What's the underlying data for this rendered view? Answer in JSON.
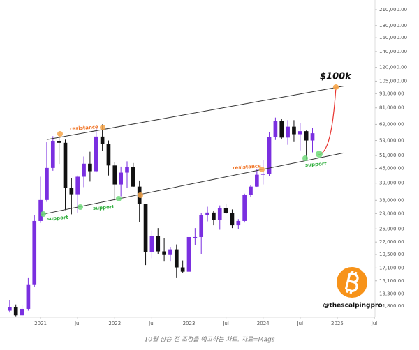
{
  "chart_data": {
    "type": "candlestick",
    "log_scale": true,
    "up_color": "#7a2fe0",
    "down_color": "#111111",
    "x": [
      "2020-08",
      "2020-09",
      "2020-10",
      "2020-11",
      "2020-12",
      "2021-01",
      "2021-02",
      "2021-03",
      "2021-04",
      "2021-05",
      "2021-06",
      "2021-07",
      "2021-08",
      "2021-09",
      "2021-10",
      "2021-11",
      "2021-12",
      "2022-01",
      "2022-02",
      "2022-03",
      "2022-04",
      "2022-05",
      "2022-06",
      "2022-07",
      "2022-08",
      "2022-09",
      "2022-10",
      "2022-11",
      "2022-12",
      "2023-01",
      "2023-02",
      "2023-03",
      "2023-04",
      "2023-05",
      "2023-06",
      "2023-07",
      "2023-08",
      "2023-09",
      "2023-10",
      "2023-11",
      "2023-12",
      "2024-01",
      "2024-02",
      "2024-03",
      "2024-04",
      "2024-05",
      "2024-06",
      "2024-07",
      "2024-08",
      "2024-09"
    ],
    "open": [
      11300,
      11700,
      10800,
      11500,
      14500,
      27000,
      33100,
      45200,
      58800,
      57700,
      37300,
      35000,
      41500,
      47100,
      43800,
      61300,
      57000,
      46300,
      38500,
      43200,
      45500,
      37700,
      31800,
      19900,
      23300,
      20100,
      19400,
      20500,
      17200,
      16500,
      23100,
      23100,
      28500,
      29300,
      27200,
      30500,
      29200,
      25900,
      27000,
      34700,
      37700,
      42300,
      42600,
      61200,
      71300,
      60700,
      67500,
      62700,
      64600,
      59000
    ],
    "high": [
      12500,
      12000,
      11900,
      15500,
      28500,
      41500,
      58000,
      61500,
      64500,
      59500,
      41000,
      42000,
      50500,
      52900,
      67000,
      69000,
      59000,
      48000,
      45800,
      48200,
      47400,
      40000,
      31900,
      24600,
      25200,
      22800,
      21000,
      21500,
      18400,
      23900,
      25200,
      29200,
      31000,
      29800,
      31400,
      31800,
      30200,
      27500,
      35200,
      38400,
      44700,
      48900,
      63900,
      73700,
      72700,
      71900,
      71900,
      70000,
      65000,
      66500
    ],
    "low": [
      11100,
      10700,
      10700,
      11300,
      14200,
      26500,
      32500,
      44000,
      47000,
      30000,
      28800,
      29300,
      37500,
      39600,
      43300,
      53500,
      42000,
      33000,
      34300,
      37200,
      37600,
      26700,
      17600,
      18800,
      19600,
      18200,
      18200,
      15500,
      16300,
      16400,
      21400,
      19600,
      26900,
      25900,
      24800,
      28900,
      25200,
      24900,
      26600,
      34100,
      37600,
      38500,
      41900,
      59300,
      59600,
      56600,
      58500,
      53600,
      49100,
      52600
    ],
    "close": [
      11700,
      10800,
      11500,
      14500,
      27000,
      33100,
      45200,
      58800,
      57700,
      37300,
      35000,
      41500,
      47100,
      43800,
      61300,
      57000,
      46300,
      38500,
      43200,
      45500,
      37700,
      31800,
      19900,
      23300,
      20100,
      19400,
      20500,
      17200,
      16500,
      23100,
      23100,
      28500,
      29300,
      27200,
      30500,
      29200,
      25900,
      27000,
      34700,
      37700,
      42300,
      42600,
      61200,
      71300,
      60700,
      67500,
      62700,
      64600,
      59000,
      63300
    ],
    "xlim": [
      "2020-07",
      "2025-07"
    ],
    "xticks": [
      {
        "value": "2021-01",
        "label": "2021"
      },
      {
        "value": "2021-07",
        "label": "Jul"
      },
      {
        "value": "2022-01",
        "label": "2022"
      },
      {
        "value": "2022-07",
        "label": "Jul"
      },
      {
        "value": "2023-01",
        "label": "2023"
      },
      {
        "value": "2023-07",
        "label": "Jul"
      },
      {
        "value": "2024-01",
        "label": "2024"
      },
      {
        "value": "2024-07",
        "label": "Jul"
      },
      {
        "value": "2025-01",
        "label": "2025"
      },
      {
        "value": "2025-07",
        "label": "Jul"
      }
    ],
    "ylim": [
      10600,
      231000
    ],
    "yticks": [
      {
        "value": 210000,
        "label": "210,000.00"
      },
      {
        "value": 180000,
        "label": "180,000.00"
      },
      {
        "value": 160000,
        "label": "160,000.00"
      },
      {
        "value": 140000,
        "label": "140,000.00"
      },
      {
        "value": 120000,
        "label": "120,000.00"
      },
      {
        "value": 105000,
        "label": "105,000.00"
      },
      {
        "value": 93000,
        "label": "93,000.00"
      },
      {
        "value": 81000,
        "label": "81,000.00"
      },
      {
        "value": 69000,
        "label": "69,000.00"
      },
      {
        "value": 59000,
        "label": "59,000.00"
      },
      {
        "value": 51000,
        "label": "51,000.00"
      },
      {
        "value": 45000,
        "label": "45,000.00"
      },
      {
        "value": 39000,
        "label": "39,000.00"
      },
      {
        "value": 33000,
        "label": "33,000.00"
      },
      {
        "value": 29000,
        "label": "29,000.00"
      },
      {
        "value": 25000,
        "label": "25,000.00"
      },
      {
        "value": 22000,
        "label": "22,000.00"
      },
      {
        "value": 19500,
        "label": "19,500.00"
      },
      {
        "value": 17100,
        "label": "17,100.00"
      },
      {
        "value": 15100,
        "label": "15,100.00"
      },
      {
        "value": 13300,
        "label": "13,300.00"
      },
      {
        "value": 11800,
        "label": "11,800.00"
      }
    ],
    "trendlines": [
      {
        "x": [
          "2021-02",
          "2025-02"
        ],
        "values": [
          59500,
          100000
        ],
        "color": "#333333"
      },
      {
        "x": [
          "2021-01",
          "2025-02"
        ],
        "values": [
          28700,
          52300
        ],
        "color": "#333333"
      }
    ],
    "annotations": [
      {
        "text": "resistance",
        "color": "#f07020"
      },
      {
        "text": "resistance",
        "color": "#f07020"
      },
      {
        "text": "support",
        "color": "#2fae3c"
      },
      {
        "text": "support",
        "color": "#2fae3c"
      },
      {
        "text": "support",
        "color": "#2fae3c"
      },
      {
        "text": "$100k",
        "color": "#111111"
      }
    ],
    "watermark": "@thescalpingpro",
    "caption": "10월 상승 전 조정을 예고하는 차트. 자료=Mags"
  }
}
